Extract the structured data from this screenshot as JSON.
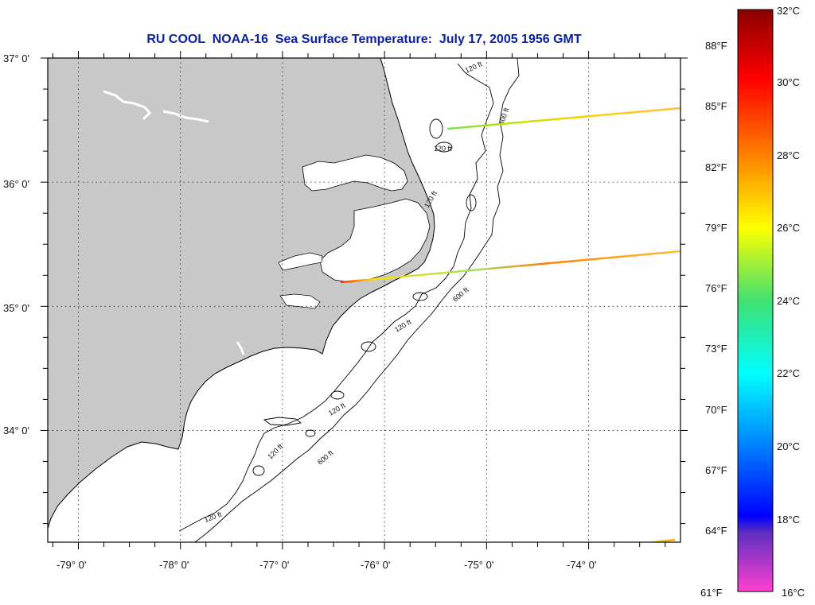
{
  "title": "RU COOL  NOAA-16  Sea Surface Temperature:  July 17, 2005 1956 GMT",
  "map": {
    "lon_range": [
      -79.3,
      -73.1
    ],
    "lat_range": [
      33.1,
      37.0
    ],
    "lon_ticks": [
      "-79° 0'",
      "-78° 0'",
      "-77° 0'",
      "-76° 0'",
      "-75° 0'",
      "-74° 0'"
    ],
    "lat_ticks": [
      "37° 0'",
      "36° 0'",
      "35° 0'",
      "34° 0'"
    ],
    "grid": "dotted",
    "land_color": "#c8c8c8",
    "ocean_color": "#ffffff",
    "contour_labels": [
      "120 ft",
      "600 ft"
    ]
  },
  "colorbar": {
    "celsius_labels": [
      "32°C",
      "30°C",
      "28°C",
      "26°C",
      "24°C",
      "22°C",
      "20°C",
      "18°C",
      "16°C"
    ],
    "fahrenheit_labels": [
      "88°F",
      "85°F",
      "82°F",
      "79°F",
      "76°F",
      "73°F",
      "70°F",
      "67°F",
      "64°F",
      "61°F"
    ],
    "range_c": [
      16,
      32
    ],
    "colors_top_to_bottom": [
      "#8b0000",
      "#ff0000",
      "#ff7f00",
      "#ffff00",
      "#40e060",
      "#00ffff",
      "#0060ff",
      "#0000ff",
      "#8040c0",
      "#ff40c0"
    ]
  }
}
